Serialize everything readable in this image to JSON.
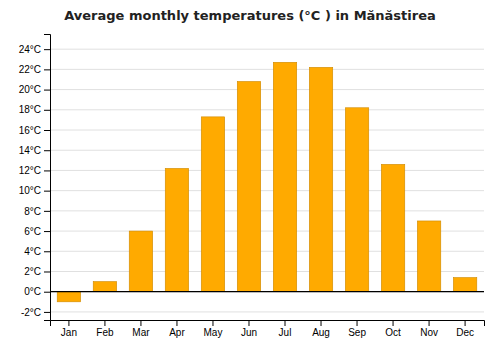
{
  "chart_data": {
    "type": "bar",
    "title": "Average monthly temperatures (°C ) in Mănăstirea",
    "categories": [
      "Jan",
      "Feb",
      "Mar",
      "Apr",
      "May",
      "Jun",
      "Jul",
      "Aug",
      "Sep",
      "Oct",
      "Nov",
      "Dec"
    ],
    "values": [
      -1.0,
      1.0,
      6.0,
      12.2,
      17.3,
      20.8,
      22.7,
      22.2,
      18.2,
      12.6,
      7.0,
      1.4
    ],
    "color": "#FFAA00",
    "ylim": [
      -2.8,
      25.5
    ],
    "yticks": [
      {
        "value": -2,
        "label": "-2°C"
      },
      {
        "value": 0,
        "label": "0°C"
      },
      {
        "value": 2,
        "label": "2°C"
      },
      {
        "value": 4,
        "label": "4°C"
      },
      {
        "value": 6,
        "label": "6°C"
      },
      {
        "value": 8,
        "label": "8°C"
      },
      {
        "value": 10,
        "label": "10°C"
      },
      {
        "value": 12,
        "label": "12°C"
      },
      {
        "value": 14,
        "label": "14°C"
      },
      {
        "value": 16,
        "label": "16°C"
      },
      {
        "value": 18,
        "label": "18°C"
      },
      {
        "value": 20,
        "label": "20°C"
      },
      {
        "value": 22,
        "label": "22°C"
      },
      {
        "value": 24,
        "label": "24°C"
      }
    ],
    "grid": true
  }
}
